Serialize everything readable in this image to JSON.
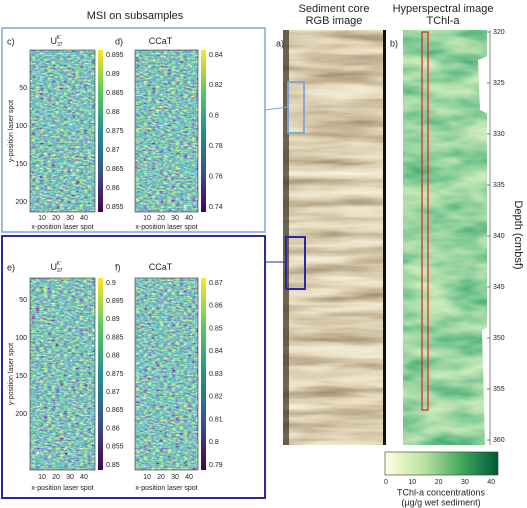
{
  "header": {
    "title": "MSI on subsamples"
  },
  "panels": [
    {
      "label": "c)",
      "title": "U",
      "title_sub": "37",
      "title_sup": "K'",
      "y_ticks": [
        50,
        100,
        150,
        200
      ],
      "x_ticks": [
        10,
        20,
        30,
        40
      ],
      "colorbar_ticks": [
        0.895,
        0.89,
        0.885,
        0.88,
        0.875,
        0.87,
        0.865,
        0.86,
        0.855
      ],
      "y_label": "y-position laser spot",
      "x_label": "x-position laser spot"
    },
    {
      "label": "d)",
      "title": "CCaT",
      "x_ticks": [
        10,
        20,
        30,
        40
      ],
      "colorbar_ticks": [
        0.84,
        0.82,
        0.8,
        0.78,
        0.76,
        0.74
      ],
      "x_label": "x-position laser spot"
    },
    {
      "label": "e)",
      "title": "U",
      "title_sub": "37",
      "title_sup": "K'",
      "y_ticks": [
        50,
        100,
        150,
        200
      ],
      "x_ticks": [
        10,
        20,
        30,
        40
      ],
      "colorbar_ticks": [
        0.9,
        0.895,
        0.89,
        0.885,
        0.88,
        0.875,
        0.87,
        0.865,
        0.86,
        0.855,
        0.85
      ],
      "y_label": "y-position laser spot",
      "x_label": "x-position laser spot"
    },
    {
      "label": "f)",
      "title": "CCaT",
      "x_ticks": [
        10,
        20,
        30,
        40
      ],
      "colorbar_ticks": [
        0.87,
        0.86,
        0.85,
        0.84,
        0.83,
        0.82,
        0.81,
        0.8,
        0.79
      ],
      "x_label": "x-position laser spot"
    }
  ],
  "core": {
    "label": "a)",
    "title_lines": [
      "Sediment core",
      "RGB image"
    ]
  },
  "hyperspectral": {
    "label": "b)",
    "title_lines": [
      "Hyperspectral image",
      "TChl-a"
    ]
  },
  "depth_axis": {
    "label": "Depth (cmbsf)",
    "ticks": [
      320,
      325,
      330,
      335,
      340,
      345,
      350,
      355,
      360
    ]
  },
  "colorbar": {
    "ticks": [
      0,
      10,
      20,
      30,
      40
    ],
    "label_lines": [
      "TChl-a concentrations",
      "(µg/g wet sediment)"
    ]
  }
}
